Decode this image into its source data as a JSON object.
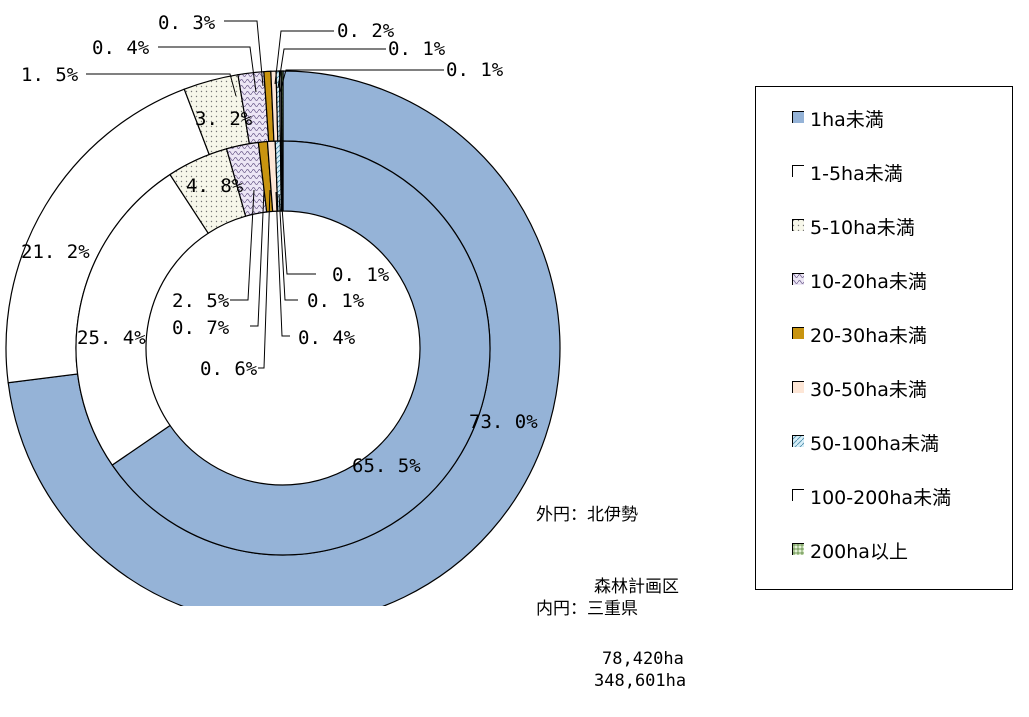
{
  "chart_data": {
    "type": "doughnut",
    "categories": [
      "1ha未満",
      "1-5ha未満",
      "5-10ha未満",
      "10-20ha未満",
      "20-30ha未満",
      "30-50ha未満",
      "50-100ha未満",
      "100-200ha未満",
      "200ha以上"
    ],
    "series": [
      {
        "name": "外円：北伊勢森林計画区",
        "values": [
          73.0,
          21.2,
          3.2,
          1.5,
          0.4,
          0.3,
          0.2,
          0.1,
          0.1
        ],
        "labels": [
          "73.0%",
          "21.2%",
          "3.2%",
          "1.5%",
          "0.4%",
          "0.3%",
          "0.2%",
          "0.1%",
          "0.1%"
        ]
      },
      {
        "name": "内円：三重県",
        "values": [
          65.5,
          25.4,
          4.8,
          2.5,
          0.7,
          0.6,
          0.4,
          0.1,
          0.1
        ],
        "labels": [
          "65.5%",
          "25.4%",
          "4.8%",
          "2.5%",
          "0.7%",
          "0.6%",
          "0.4%",
          "0.1%",
          "0.1%"
        ]
      }
    ],
    "display_labels": {
      "outer": [
        "73. 0%",
        "21. 2%",
        "3. 2%",
        "1. 5%",
        "0. 4%",
        "0. 3%",
        "0. 2%",
        "0. 1%",
        "0. 1%"
      ],
      "inner": [
        "65. 5%",
        "25. 4%",
        "4. 8%",
        "2. 5%",
        "0. 7%",
        "0. 6%",
        "0. 4%",
        "0. 1%",
        "0. 1%"
      ]
    },
    "colors": [
      "#95b3d7",
      "#ffffff",
      "#f4f4e4",
      "#e4dff0",
      "#c89410",
      "#fde6d6",
      "#d0ecf4",
      "#ffffff",
      "#dff0d0"
    ],
    "legend": {
      "position": "right",
      "items": [
        "1ha未満",
        "1-5ha未満",
        "5-10ha未満",
        "10-20ha未満",
        "20-30ha未満",
        "30-50ha未満",
        "50-100ha未満",
        "100-200ha未満",
        "200ha以上"
      ]
    }
  },
  "notes": {
    "outer_line1": "外円：北伊勢",
    "outer_line2": "森林計画区",
    "outer_line3": "78,420ha",
    "inner_line1": "内円：三重県",
    "inner_line2": "348,601ha"
  }
}
